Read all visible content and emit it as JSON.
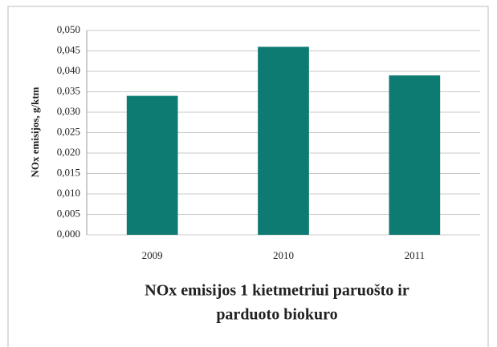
{
  "chart_data": {
    "type": "bar",
    "title": [
      "NOx emisijos 1 kietmetriui paruošto ir",
      "parduoto biokuro"
    ],
    "y_label": "NOx emisijos, g/ktm",
    "categories": [
      "2009",
      "2010",
      "2011"
    ],
    "values": [
      0.034,
      0.046,
      0.039
    ],
    "color": "#0e7b72",
    "ylim": [
      0,
      0.05
    ],
    "yticks": [
      {
        "value": 0,
        "label": "0,000"
      },
      {
        "value": 0.005,
        "label": "0,005"
      },
      {
        "value": 0.01,
        "label": "0,010"
      },
      {
        "value": 0.015,
        "label": "0,015"
      },
      {
        "value": 0.02,
        "label": "0,020"
      },
      {
        "value": 0.025,
        "label": "0,025"
      },
      {
        "value": 0.03,
        "label": "0,030"
      },
      {
        "value": 0.035,
        "label": "0,035"
      },
      {
        "value": 0.04,
        "label": "0,040"
      },
      {
        "value": 0.045,
        "label": "0,045"
      },
      {
        "value": 0.05,
        "label": "0,050"
      }
    ],
    "grid": true
  }
}
